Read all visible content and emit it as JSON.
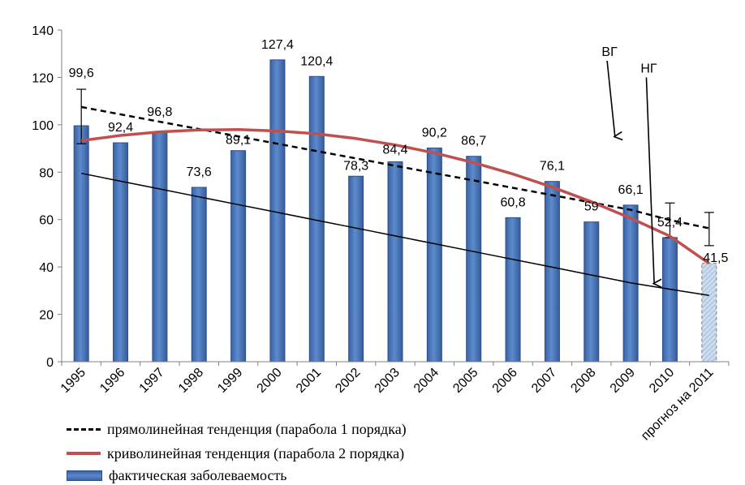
{
  "chart_data": {
    "type": "bar",
    "categories": [
      "1995",
      "1996",
      "1997",
      "1998",
      "1999",
      "2000",
      "2001",
      "2002",
      "2003",
      "2004",
      "2005",
      "2006",
      "2007",
      "2008",
      "2009",
      "2010",
      "прогноз на 2011"
    ],
    "ylim": [
      0,
      140
    ],
    "yticks": [
      0,
      20,
      40,
      60,
      80,
      100,
      120,
      140
    ],
    "grid": false,
    "legend_position": "bottom",
    "series": [
      {
        "name": "фактическая заболеваемость",
        "type": "bar",
        "color": "#4f81bd",
        "values": [
          99.6,
          92.4,
          96.8,
          73.6,
          89.1,
          127.4,
          120.4,
          78.3,
          84.4,
          90.2,
          86.7,
          60.8,
          76.1,
          59,
          66.1,
          52.4,
          41.5
        ],
        "labels": [
          "99,6",
          "92,4",
          "96,8",
          "73,6",
          "89,1",
          "127,4",
          "120,4",
          "78,3",
          "84,4",
          "90,2",
          "86,7",
          "60,8",
          "76,1",
          "59",
          "66,1",
          "52,4",
          "41,5"
        ]
      },
      {
        "name": "прямолинейная тенденция (парабола 1 порядка)",
        "type": "line",
        "style": "dashed",
        "color": "#000000",
        "values": [
          107.5,
          104.4,
          101.3,
          98.2,
          95.1,
          92.0,
          88.9,
          85.8,
          82.7,
          79.6,
          76.5,
          73.4,
          70.3,
          67.2,
          64.1,
          59.8,
          56.3
        ]
      },
      {
        "name": "криволинейная тенденция (парабола 2 порядка)",
        "type": "line",
        "color": "#c0504d",
        "values": [
          93.3,
          95.5,
          97.0,
          97.8,
          98.0,
          97.4,
          96.2,
          94.2,
          91.5,
          88.1,
          84.0,
          79.2,
          73.7,
          67.5,
          60.6,
          53.0,
          41.5
        ]
      },
      {
        "type": "line",
        "color": "#000000",
        "values": [
          79.5,
          76.2,
          72.9,
          69.6,
          66.3,
          63.0,
          59.7,
          56.4,
          53.1,
          49.8,
          46.5,
          43.2,
          39.9,
          36.6,
          33.3,
          30.6,
          28.0
        ]
      }
    ],
    "error_bars": [
      {
        "category_index": 0,
        "low": 92,
        "high": 115
      },
      {
        "category_index": 15,
        "low": 52.4,
        "high": 67
      },
      {
        "category_index": 16,
        "low": 49,
        "high": 63
      }
    ],
    "annotations": [
      {
        "text": "ВГ",
        "arrow_from": [
          13.4,
          127
        ],
        "arrow_to": [
          13.6,
          95
        ]
      },
      {
        "text": "НГ",
        "arrow_from": [
          14.4,
          120
        ],
        "arrow_to": [
          14.6,
          33
        ]
      }
    ]
  }
}
